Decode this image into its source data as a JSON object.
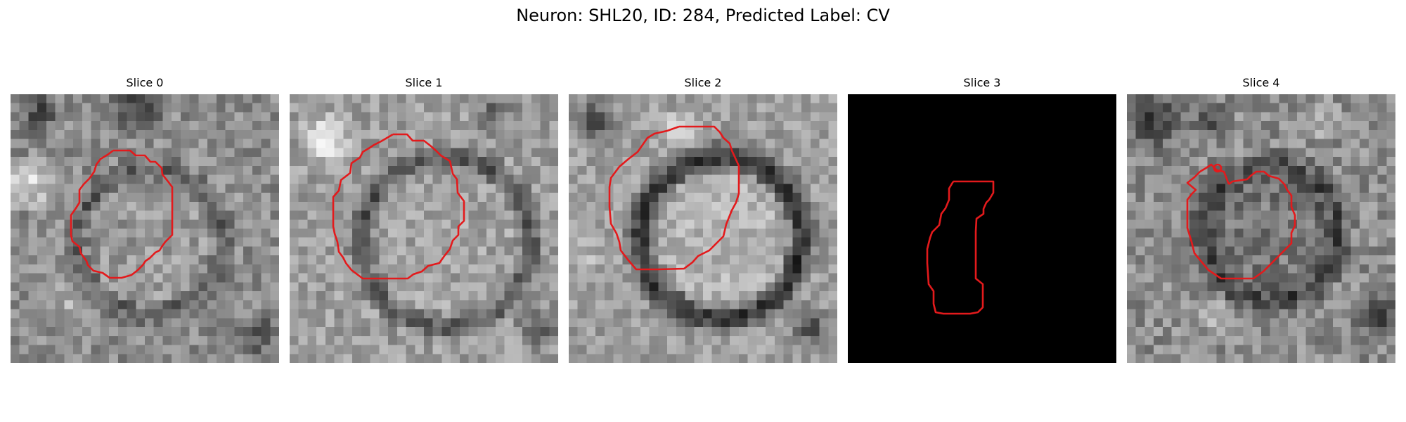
{
  "title": "Neuron: SHL20, ID: 284, Predicted Label: CV",
  "slices": [
    {
      "label": "Slice 0"
    },
    {
      "label": "Slice 1"
    },
    {
      "label": "Slice 2"
    },
    {
      "label": "Slice 3"
    },
    {
      "label": "Slice 4"
    }
  ],
  "colors": {
    "contour": "#e31a1c",
    "background": "#ffffff"
  }
}
